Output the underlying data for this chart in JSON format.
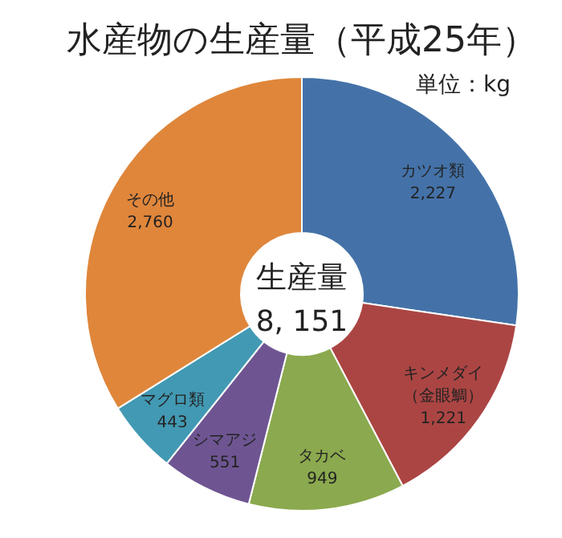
{
  "chart_data": {
    "type": "donut",
    "title": "水産物の生産量（平成25年）",
    "subtitle": "単位：kg",
    "categories": [
      "カツオ類",
      "キンメダイ（金眼鯛）",
      "タカベ",
      "シマアジ",
      "マグロ類",
      "その他"
    ],
    "values": [
      2227,
      1221,
      949,
      551,
      443,
      2760
    ],
    "value_labels": [
      "2,227",
      "1,221",
      "949",
      "551",
      "443",
      "2,760"
    ],
    "colors": [
      "#4472a8",
      "#ab4543",
      "#8ba94e",
      "#6e5592",
      "#4299b3",
      "#df863b"
    ],
    "annotations": [
      "生産量",
      "8, 151"
    ]
  }
}
